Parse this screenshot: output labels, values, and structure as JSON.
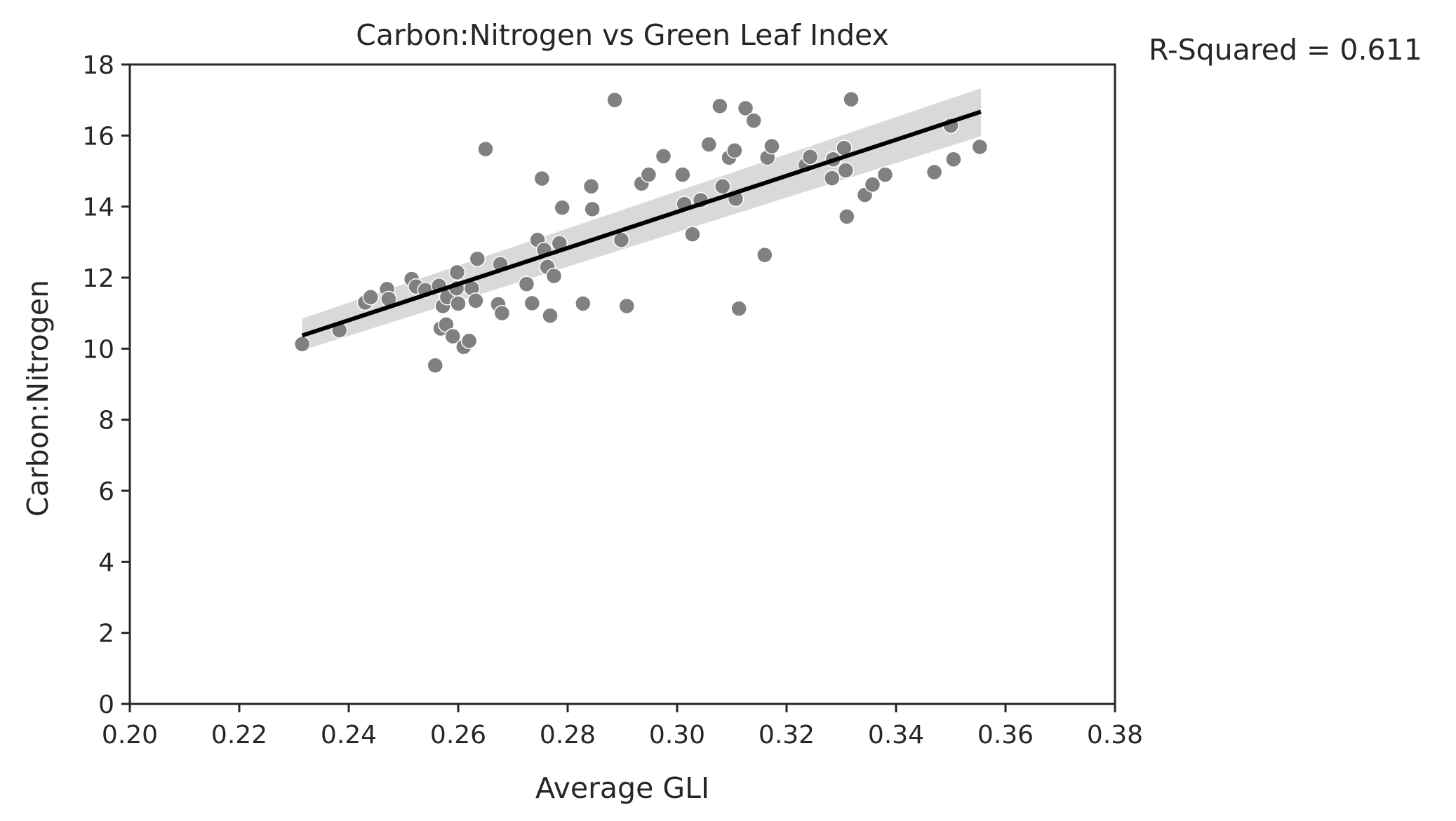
{
  "chart_data": {
    "type": "scatter",
    "title": "Carbon:Nitrogen vs Green Leaf Index",
    "xlabel": "Average GLI",
    "ylabel": "Carbon:Nitrogen",
    "xlim": [
      0.2,
      0.38
    ],
    "ylim": [
      0,
      18
    ],
    "xticks": [
      "0.20",
      "0.22",
      "0.24",
      "0.26",
      "0.28",
      "0.30",
      "0.32",
      "0.34",
      "0.36",
      "0.38"
    ],
    "yticks": [
      "0",
      "2",
      "4",
      "6",
      "8",
      "10",
      "12",
      "14",
      "16",
      "18"
    ],
    "grid": false,
    "annotation": "R-Squared = 0.611",
    "regression": {
      "x_start": 0.2315,
      "y_start": 10.37,
      "x_end": 0.3555,
      "y_end": 16.67,
      "ci_start": [
        9.95,
        10.85
      ],
      "ci_end": [
        15.98,
        17.33
      ]
    },
    "points": [
      [
        0.2315,
        10.13
      ],
      [
        0.2383,
        10.52
      ],
      [
        0.243,
        11.3
      ],
      [
        0.244,
        11.45
      ],
      [
        0.247,
        11.68
      ],
      [
        0.2473,
        11.4
      ],
      [
        0.2515,
        11.96
      ],
      [
        0.2523,
        11.75
      ],
      [
        0.254,
        11.65
      ],
      [
        0.2558,
        9.53
      ],
      [
        0.2565,
        11.77
      ],
      [
        0.2568,
        10.57
      ],
      [
        0.2572,
        11.2
      ],
      [
        0.2578,
        10.68
      ],
      [
        0.258,
        11.45
      ],
      [
        0.259,
        10.35
      ],
      [
        0.2597,
        11.7
      ],
      [
        0.2598,
        12.15
      ],
      [
        0.26,
        11.27
      ],
      [
        0.261,
        10.05
      ],
      [
        0.262,
        10.22
      ],
      [
        0.2625,
        11.7
      ],
      [
        0.2632,
        11.35
      ],
      [
        0.2635,
        12.53
      ],
      [
        0.265,
        15.62
      ],
      [
        0.2673,
        11.25
      ],
      [
        0.2677,
        12.38
      ],
      [
        0.268,
        11.0
      ],
      [
        0.2725,
        11.82
      ],
      [
        0.2735,
        11.28
      ],
      [
        0.2745,
        13.06
      ],
      [
        0.2753,
        14.79
      ],
      [
        0.2757,
        12.78
      ],
      [
        0.2763,
        12.3
      ],
      [
        0.2768,
        10.93
      ],
      [
        0.2775,
        12.05
      ],
      [
        0.2785,
        12.97
      ],
      [
        0.279,
        13.97
      ],
      [
        0.2828,
        11.27
      ],
      [
        0.2843,
        14.57
      ],
      [
        0.2845,
        13.93
      ],
      [
        0.2886,
        17.0
      ],
      [
        0.2898,
        13.06
      ],
      [
        0.2908,
        11.2
      ],
      [
        0.2935,
        14.65
      ],
      [
        0.2948,
        14.9
      ],
      [
        0.2975,
        15.42
      ],
      [
        0.301,
        14.9
      ],
      [
        0.3013,
        14.07
      ],
      [
        0.3028,
        13.22
      ],
      [
        0.3043,
        14.18
      ],
      [
        0.3058,
        15.75
      ],
      [
        0.3078,
        16.83
      ],
      [
        0.3083,
        14.57
      ],
      [
        0.3095,
        15.38
      ],
      [
        0.3105,
        15.58
      ],
      [
        0.3107,
        14.22
      ],
      [
        0.3113,
        11.13
      ],
      [
        0.3125,
        16.77
      ],
      [
        0.314,
        16.42
      ],
      [
        0.316,
        12.64
      ],
      [
        0.3165,
        15.38
      ],
      [
        0.3173,
        15.7
      ],
      [
        0.3235,
        15.17
      ],
      [
        0.3243,
        15.4
      ],
      [
        0.3283,
        14.8
      ],
      [
        0.3285,
        15.33
      ],
      [
        0.3305,
        15.65
      ],
      [
        0.3308,
        15.02
      ],
      [
        0.331,
        13.72
      ],
      [
        0.3318,
        17.02
      ],
      [
        0.3343,
        14.33
      ],
      [
        0.3357,
        14.62
      ],
      [
        0.338,
        14.9
      ],
      [
        0.347,
        14.97
      ],
      [
        0.35,
        16.28
      ],
      [
        0.3505,
        15.33
      ],
      [
        0.3553,
        15.68
      ]
    ],
    "colors": {
      "point": "#808080",
      "point_edge": "#ffffff",
      "line": "#000000",
      "ci": "#d9d9d9",
      "axis": "#262626"
    }
  }
}
